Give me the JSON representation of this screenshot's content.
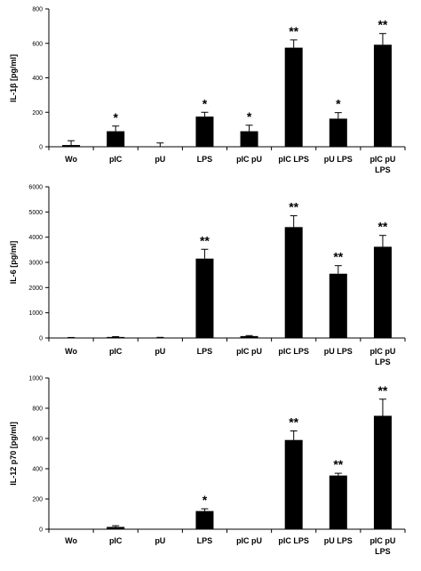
{
  "chart_data": [
    {
      "type": "bar",
      "title": "",
      "xlabel": "",
      "ylabel": "IL-1β [pg/ml]",
      "ylim": [
        0,
        800
      ],
      "yticks": [
        0,
        200,
        400,
        600,
        800
      ],
      "categories": [
        [
          "Wo"
        ],
        [
          "pIC"
        ],
        [
          "pU"
        ],
        [
          "LPS"
        ],
        [
          "pIC pU"
        ],
        [
          "pIC LPS"
        ],
        [
          "pU LPS"
        ],
        [
          "pIC pU",
          "LPS"
        ]
      ],
      "values": [
        10,
        90,
        2,
        175,
        90,
        575,
        163,
        592
      ],
      "errors": [
        25,
        30,
        20,
        25,
        35,
        45,
        35,
        65
      ],
      "significance": [
        "",
        "*",
        "",
        "*",
        "*",
        "**",
        "*",
        "**"
      ]
    },
    {
      "type": "bar",
      "title": "",
      "xlabel": "",
      "ylabel": "IL-6 [pg/ml]",
      "ylim": [
        0,
        6000
      ],
      "yticks": [
        0,
        1000,
        2000,
        3000,
        4000,
        5000,
        6000
      ],
      "categories": [
        [
          "Wo"
        ],
        [
          "pIC"
        ],
        [
          "pU"
        ],
        [
          "LPS"
        ],
        [
          "pIC pU"
        ],
        [
          "pIC LPS"
        ],
        [
          "pU LPS"
        ],
        [
          "pIC pU",
          "LPS"
        ]
      ],
      "values": [
        10,
        40,
        15,
        3150,
        75,
        4400,
        2550,
        3620
      ],
      "errors": [
        10,
        15,
        10,
        370,
        20,
        450,
        320,
        450
      ],
      "significance": [
        "",
        "",
        "",
        "**",
        "",
        "**",
        "**",
        "**"
      ]
    },
    {
      "type": "bar",
      "title": "",
      "xlabel": "",
      "ylabel": "IL-12 p70 [pg/ml]",
      "ylim": [
        0,
        1000
      ],
      "yticks": [
        0,
        200,
        400,
        600,
        800,
        1000
      ],
      "categories": [
        [
          "Wo"
        ],
        [
          "pIC"
        ],
        [
          "pU"
        ],
        [
          "LPS"
        ],
        [
          "pIC pU"
        ],
        [
          "pIC LPS"
        ],
        [
          "pU LPS"
        ],
        [
          "pIC pU",
          "LPS"
        ]
      ],
      "values": [
        0,
        15,
        0,
        120,
        0,
        590,
        355,
        750
      ],
      "errors": [
        0,
        8,
        0,
        15,
        0,
        60,
        15,
        110
      ],
      "significance": [
        "",
        "",
        "",
        "*",
        "",
        "**",
        "**",
        "**"
      ]
    }
  ]
}
